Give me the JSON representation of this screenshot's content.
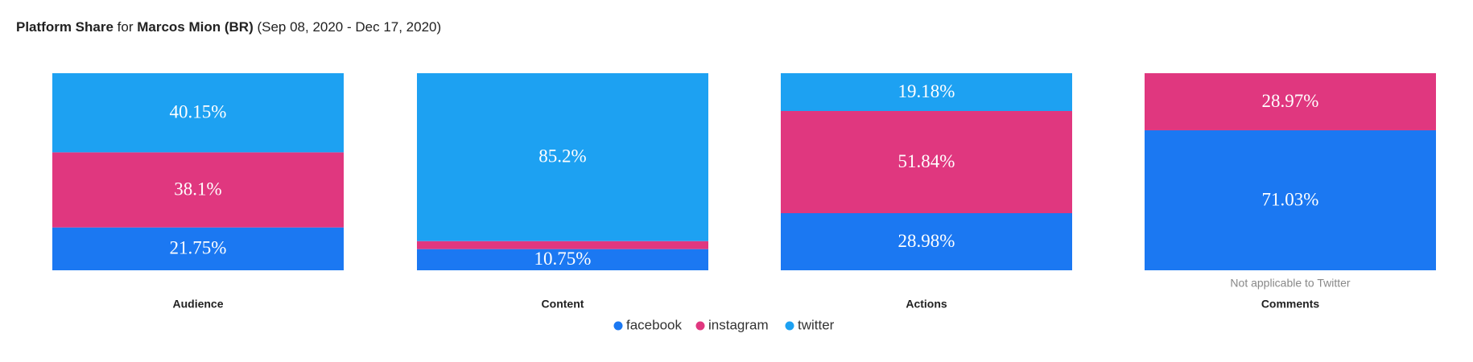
{
  "chart_data": {
    "type": "stacked-bar",
    "title_parts": [
      "Platform Share",
      " for ",
      "Marcos Mion (BR)",
      " (Sep 08, 2020 - Dec 17, 2020)"
    ],
    "categories": [
      "Audience",
      "Content",
      "Actions",
      "Comments"
    ],
    "ylim": [
      0,
      100
    ],
    "series": [
      {
        "name": "facebook",
        "color": "#1b78f2",
        "values": [
          21.75,
          10.75,
          28.98,
          71.03
        ],
        "value_labels": [
          "21.75%",
          "10.75%",
          "28.98%",
          "71.03%"
        ]
      },
      {
        "name": "instagram",
        "color": "#e0377f",
        "values": [
          38.1,
          4.05,
          51.84,
          28.97
        ],
        "value_labels": [
          "38.1%",
          null,
          "51.84%",
          "28.97%"
        ]
      },
      {
        "name": "twitter",
        "color": "#1da1f2",
        "values": [
          40.15,
          85.2,
          19.18,
          null
        ],
        "value_labels": [
          "40.15%",
          "85.2%",
          "19.18%",
          null
        ]
      }
    ],
    "annotations": [
      {
        "category": 3,
        "text": "Not applicable to Twitter"
      }
    ],
    "legend": "bottom"
  }
}
